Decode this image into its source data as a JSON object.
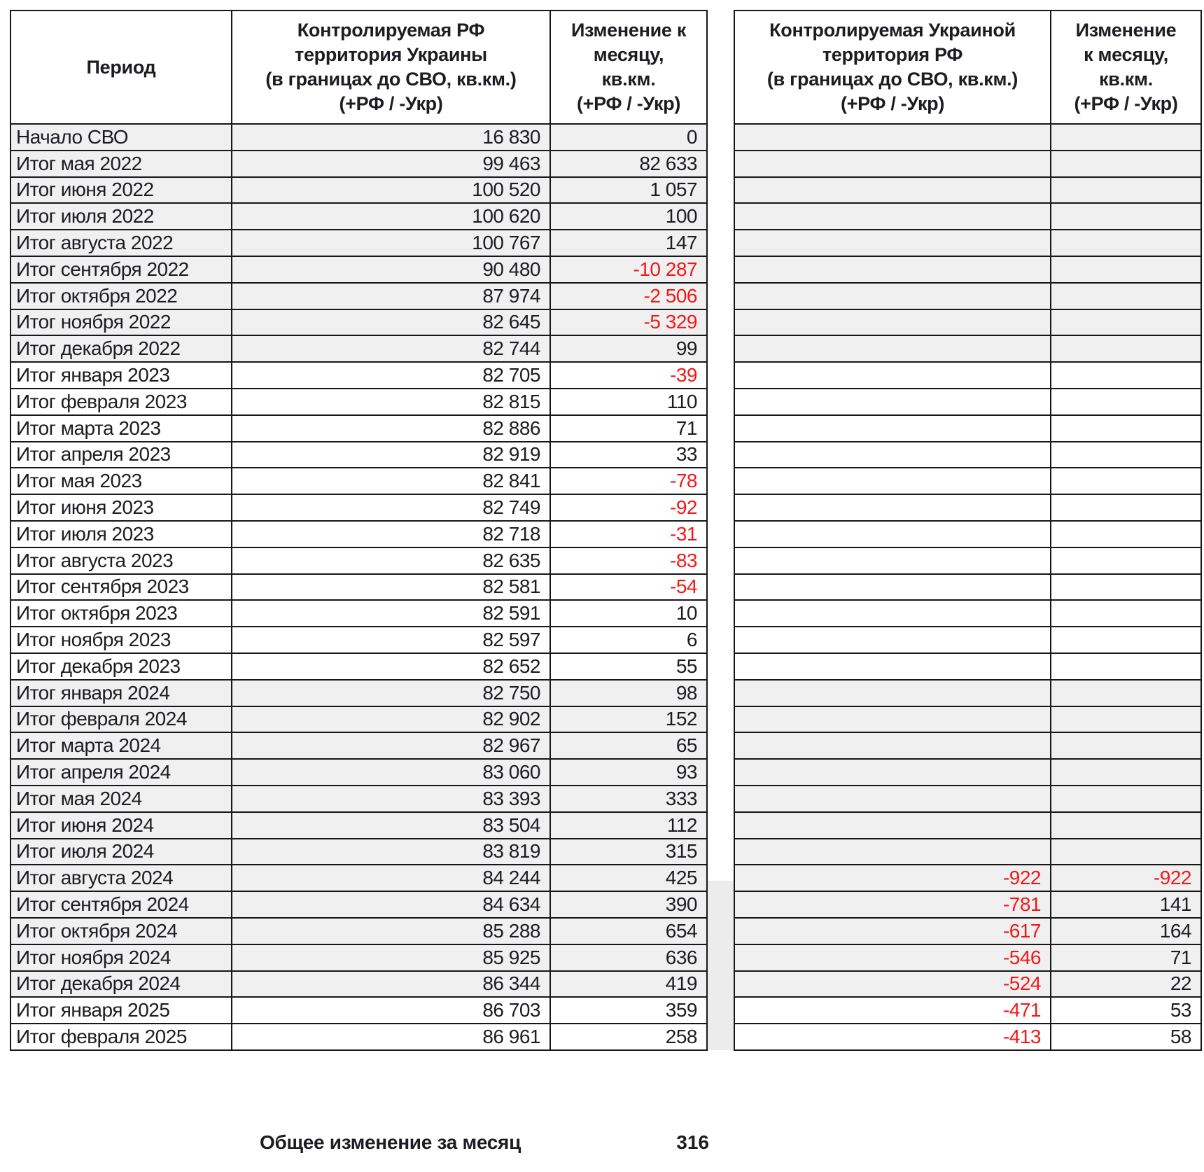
{
  "left_table": {
    "headers": {
      "period": "Период",
      "area": "Контролируемая РФ\nтерритория Украины\n(в границах до СВО, кв.км.)\n(+РФ / -Укр)",
      "change": "Изменение к\nмесяцу,\nкв.км.\n(+РФ / -Укр)"
    }
  },
  "right_table": {
    "headers": {
      "area": "Контролируемая Украиной\nтерритория РФ\n(в границах до СВО, кв.км.)\n(+РФ / -Укр)",
      "change": "Изменение\nк месяцу,\nкв.км.\n(+РФ / -Укр)"
    }
  },
  "rows": [
    {
      "period": "Начало СВО",
      "left_area": "16 830",
      "left_change": "0",
      "right_area": "",
      "right_change": "",
      "shade": "g"
    },
    {
      "period": "Итог мая 2022",
      "left_area": "99 463",
      "left_change": "82 633",
      "right_area": "",
      "right_change": "",
      "shade": "g"
    },
    {
      "period": "Итог июня 2022",
      "left_area": "100 520",
      "left_change": "1 057",
      "right_area": "",
      "right_change": "",
      "shade": "g"
    },
    {
      "period": "Итог июля 2022",
      "left_area": "100 620",
      "left_change": "100",
      "right_area": "",
      "right_change": "",
      "shade": "g"
    },
    {
      "period": "Итог августа 2022",
      "left_area": "100 767",
      "left_change": "147",
      "right_area": "",
      "right_change": "",
      "shade": "g"
    },
    {
      "period": "Итог сентября 2022",
      "left_area": "90 480",
      "left_change": "-10 287",
      "right_area": "",
      "right_change": "",
      "shade": "g"
    },
    {
      "period": "Итог октября 2022",
      "left_area": "87 974",
      "left_change": "-2 506",
      "right_area": "",
      "right_change": "",
      "shade": "g"
    },
    {
      "period": "Итог ноября 2022",
      "left_area": "82 645",
      "left_change": "-5 329",
      "right_area": "",
      "right_change": "",
      "shade": "g"
    },
    {
      "period": "Итог декабря 2022",
      "left_area": "82 744",
      "left_change": "99",
      "right_area": "",
      "right_change": "",
      "shade": "g"
    },
    {
      "period": "Итог января 2023",
      "left_area": "82 705",
      "left_change": "-39",
      "right_area": "",
      "right_change": "",
      "shade": "w"
    },
    {
      "period": "Итог февраля 2023",
      "left_area": "82 815",
      "left_change": "110",
      "right_area": "",
      "right_change": "",
      "shade": "w"
    },
    {
      "period": "Итог марта 2023",
      "left_area": "82 886",
      "left_change": "71",
      "right_area": "",
      "right_change": "",
      "shade": "w"
    },
    {
      "period": "Итог апреля 2023",
      "left_area": "82 919",
      "left_change": "33",
      "right_area": "",
      "right_change": "",
      "shade": "w"
    },
    {
      "period": "Итог мая 2023",
      "left_area": "82 841",
      "left_change": "-78",
      "right_area": "",
      "right_change": "",
      "shade": "w"
    },
    {
      "period": "Итог июня 2023",
      "left_area": "82 749",
      "left_change": "-92",
      "right_area": "",
      "right_change": "",
      "shade": "w"
    },
    {
      "period": "Итог июля 2023",
      "left_area": "82 718",
      "left_change": "-31",
      "right_area": "",
      "right_change": "",
      "shade": "w"
    },
    {
      "period": "Итог августа 2023",
      "left_area": "82 635",
      "left_change": "-83",
      "right_area": "",
      "right_change": "",
      "shade": "w"
    },
    {
      "period": "Итог сентября 2023",
      "left_area": "82 581",
      "left_change": "-54",
      "right_area": "",
      "right_change": "",
      "shade": "w"
    },
    {
      "period": "Итог октября 2023",
      "left_area": "82 591",
      "left_change": "10",
      "right_area": "",
      "right_change": "",
      "shade": "w"
    },
    {
      "period": "Итог ноября 2023",
      "left_area": "82 597",
      "left_change": "6",
      "right_area": "",
      "right_change": "",
      "shade": "w"
    },
    {
      "period": "Итог декабря 2023",
      "left_area": "82 652",
      "left_change": "55",
      "right_area": "",
      "right_change": "",
      "shade": "w"
    },
    {
      "period": "Итог января 2024",
      "left_area": "82 750",
      "left_change": "98",
      "right_area": "",
      "right_change": "",
      "shade": "g"
    },
    {
      "period": "Итог февраля 2024",
      "left_area": "82 902",
      "left_change": "152",
      "right_area": "",
      "right_change": "",
      "shade": "g"
    },
    {
      "period": "Итог марта 2024",
      "left_area": "82 967",
      "left_change": "65",
      "right_area": "",
      "right_change": "",
      "shade": "g"
    },
    {
      "period": "Итог апреля 2024",
      "left_area": "83 060",
      "left_change": "93",
      "right_area": "",
      "right_change": "",
      "shade": "g"
    },
    {
      "period": "Итог мая 2024",
      "left_area": "83 393",
      "left_change": "333",
      "right_area": "",
      "right_change": "",
      "shade": "g"
    },
    {
      "period": "Итог июня 2024",
      "left_area": "83 504",
      "left_change": "112",
      "right_area": "",
      "right_change": "",
      "shade": "g"
    },
    {
      "period": "Итог июля 2024",
      "left_area": "83 819",
      "left_change": "315",
      "right_area": "",
      "right_change": "",
      "shade": "g"
    },
    {
      "period": "Итог августа 2024",
      "left_area": "84 244",
      "left_change": "425",
      "right_area": "-922",
      "right_change": "-922",
      "shade": "g"
    },
    {
      "period": "Итог сентября 2024",
      "left_area": "84 634",
      "left_change": "390",
      "right_area": "-781",
      "right_change": "141",
      "shade": "g"
    },
    {
      "period": "Итог октября 2024",
      "left_area": "85 288",
      "left_change": "654",
      "right_area": "-617",
      "right_change": "164",
      "shade": "g"
    },
    {
      "period": "Итог ноября 2024",
      "left_area": "85 925",
      "left_change": "636",
      "right_area": "-546",
      "right_change": "71",
      "shade": "g"
    },
    {
      "period": "Итог декабря 2024",
      "left_area": "86 344",
      "left_change": "419",
      "right_area": "-524",
      "right_change": "22",
      "shade": "g"
    },
    {
      "period": "Итог января 2025",
      "left_area": "86 703",
      "left_change": "359",
      "right_area": "-471",
      "right_change": "53",
      "shade": "w"
    },
    {
      "period": "Итог февраля 2025",
      "left_area": "86 961",
      "left_change": "258",
      "right_area": "-413",
      "right_change": "58",
      "shade": "w"
    }
  ],
  "footer": {
    "label": "Общее изменение за месяц",
    "value": "316"
  },
  "colors": {
    "negative": "#f51717",
    "row_shade": "#f0f0f0",
    "border": "#17171a"
  }
}
